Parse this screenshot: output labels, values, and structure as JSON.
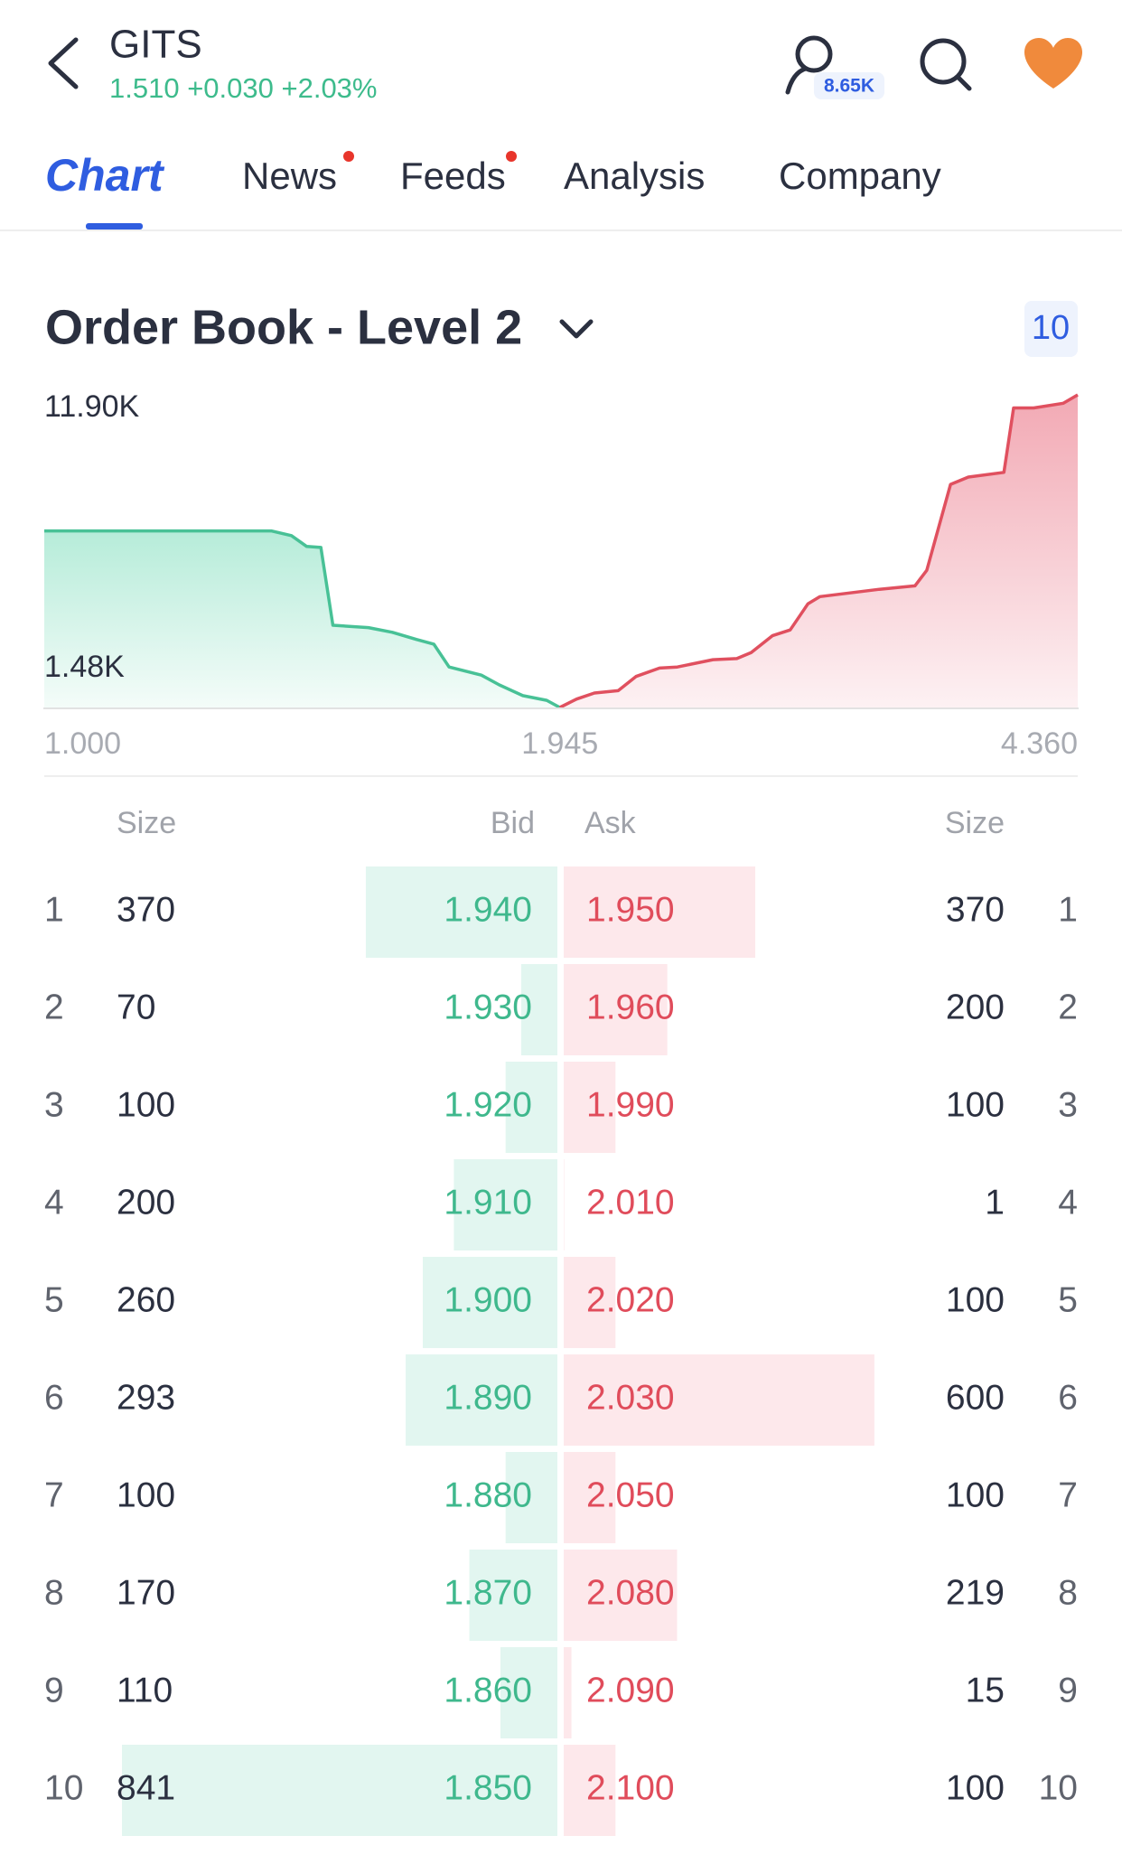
{
  "header": {
    "ticker": "GITS",
    "quote": "1.510 +0.030 +2.03%",
    "followers": "8.65K"
  },
  "tabs": [
    "Chart",
    "News",
    "Feeds",
    "Analysis",
    "Company"
  ],
  "section": {
    "title": "Order Book - Level 2",
    "depth": "10"
  },
  "chart_data": {
    "type": "area",
    "y_labels": [
      "11.90K",
      "1.48K"
    ],
    "xlim": [
      1,
      4.36
    ],
    "ylim": [
      0,
      11900
    ],
    "xticks": [
      {
        "value": 1,
        "label": "1.000"
      },
      {
        "value": 1.945,
        "label": "1.945"
      },
      {
        "value": 4.36,
        "label": "4.360"
      }
    ],
    "series": [
      {
        "color": "#48c196",
        "x": [
          1.0,
          1.416,
          1.453,
          1.481,
          1.507,
          1.529,
          1.594,
          1.638,
          1.682,
          1.714,
          1.742,
          1.801,
          1.834,
          1.877,
          1.921,
          1.945
        ],
        "values": [
          6720,
          6720,
          6540,
          6130,
          6090,
          3130,
          3040,
          2860,
          2590,
          2410,
          1540,
          1230,
          860,
          450,
          270,
          0
        ]
      },
      {
        "color": "#e0505f",
        "x": [
          1.945,
          2.023,
          2.106,
          2.217,
          2.3,
          2.41,
          2.493,
          2.659,
          2.77,
          2.837,
          2.936,
          3.019,
          3.102,
          3.158,
          3.435,
          3.601,
          3.656,
          3.767,
          3.85,
          4.016,
          4.061,
          4.155,
          4.293,
          4.36
        ],
        "values": [
          0,
          320,
          550,
          640,
          1180,
          1500,
          1540,
          1820,
          1860,
          2090,
          2730,
          2950,
          3950,
          4220,
          4500,
          4630,
          5220,
          8490,
          8770,
          8950,
          11400,
          11400,
          11580,
          11900
        ]
      }
    ]
  },
  "order_book": {
    "headers": [
      "Size",
      "Bid",
      "Ask",
      "Size"
    ],
    "rows": [
      {
        "level": 1,
        "bid_size": 370,
        "bid": "1.940",
        "ask": "1.950",
        "ask_size": 370
      },
      {
        "level": 2,
        "bid_size": 70,
        "bid": "1.930",
        "ask": "1.960",
        "ask_size": 200
      },
      {
        "level": 3,
        "bid_size": 100,
        "bid": "1.920",
        "ask": "1.990",
        "ask_size": 100
      },
      {
        "level": 4,
        "bid_size": 200,
        "bid": "1.910",
        "ask": "2.010",
        "ask_size": 1
      },
      {
        "level": 5,
        "bid_size": 260,
        "bid": "1.900",
        "ask": "2.020",
        "ask_size": 100
      },
      {
        "level": 6,
        "bid_size": 293,
        "bid": "1.890",
        "ask": "2.030",
        "ask_size": 600
      },
      {
        "level": 7,
        "bid_size": 100,
        "bid": "1.880",
        "ask": "2.050",
        "ask_size": 100
      },
      {
        "level": 8,
        "bid_size": 170,
        "bid": "1.870",
        "ask": "2.080",
        "ask_size": 219
      },
      {
        "level": 9,
        "bid_size": 110,
        "bid": "1.860",
        "ask": "2.090",
        "ask_size": 15
      },
      {
        "level": 10,
        "bid_size": 841,
        "bid": "1.850",
        "ask": "2.100",
        "ask_size": 100
      }
    ]
  }
}
